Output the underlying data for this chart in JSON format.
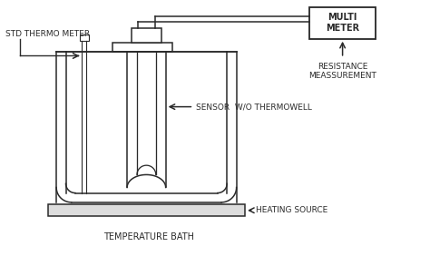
{
  "bg_color": "#ffffff",
  "line_color": "#2a2a2a",
  "label_color": "#2a2a2a",
  "labels": {
    "std_thermo": "STD THERMO METER",
    "multi_meter": "MULTI\nMETER",
    "resistance": "RESISTANCE\nMEASSUREMENT",
    "sensor": "SENSOR  W/O THERMOWELL",
    "heating": "HEATING SOURCE",
    "temp_bath": "TEMPERATURE BATH"
  },
  "font_size": 6.5
}
